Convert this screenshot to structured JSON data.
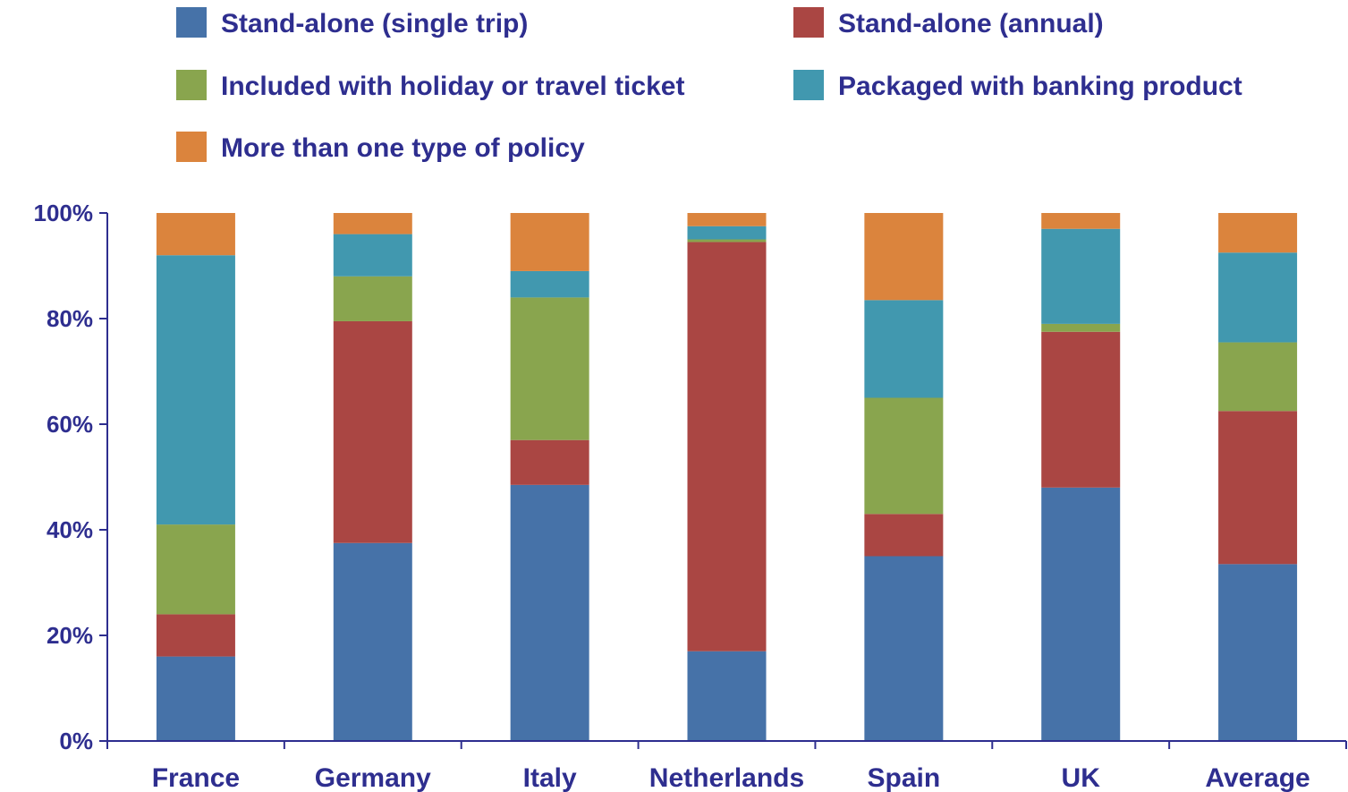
{
  "chart_data": {
    "type": "bar",
    "stacked": true,
    "normalized": true,
    "categories": [
      "France",
      "Germany",
      "Italy",
      "Netherlands",
      "Spain",
      "UK",
      "Average"
    ],
    "ylim": [
      0,
      100
    ],
    "yticks": [
      "0%",
      "20%",
      "40%",
      "60%",
      "80%",
      "100%"
    ],
    "ytick_values": [
      0,
      20,
      40,
      60,
      80,
      100
    ],
    "grid": false,
    "legend_position": "top",
    "series": [
      {
        "name": "Stand-alone (single trip)",
        "color": "#4672a8",
        "values": [
          16,
          37.5,
          48.5,
          17,
          35,
          48,
          33.5
        ]
      },
      {
        "name": "Stand-alone (annual)",
        "color": "#aa4643",
        "values": [
          8,
          42,
          8.5,
          77.5,
          8,
          29.5,
          29
        ]
      },
      {
        "name": "Included with holiday or travel ticket",
        "color": "#89a54e",
        "values": [
          17,
          8.5,
          27,
          0.5,
          22,
          1.5,
          13
        ]
      },
      {
        "name": "Packaged with banking product",
        "color": "#4198af",
        "values": [
          51,
          8,
          5,
          2.5,
          18.5,
          18,
          17
        ]
      },
      {
        "name": "More than one type of policy",
        "color": "#db843d",
        "values": [
          8,
          4,
          11,
          2.5,
          16.5,
          3,
          7.5
        ]
      }
    ]
  }
}
